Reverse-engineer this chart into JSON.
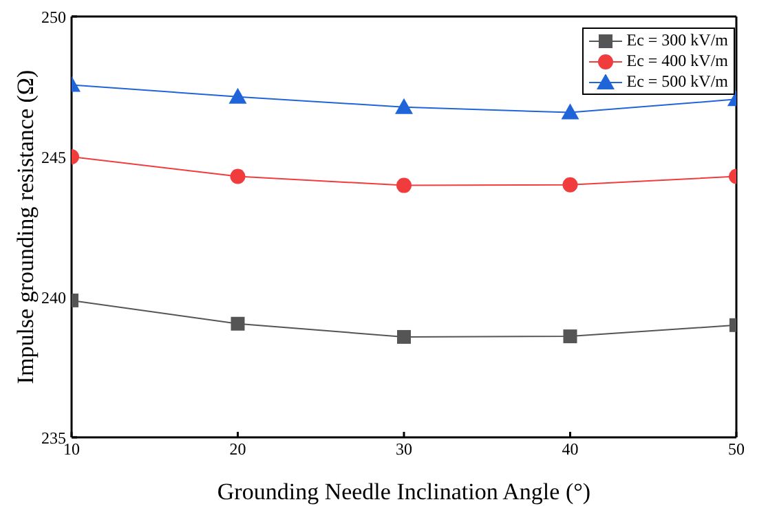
{
  "chart_data": {
    "type": "line",
    "xlabel": "Grounding Needle Inclination Angle (°)",
    "ylabel": "Impulse grounding resistance (Ω)",
    "x": [
      10,
      20,
      30,
      40,
      50
    ],
    "series": [
      {
        "name": "Ec = 300 kV/m",
        "color": "#555555",
        "marker": "square",
        "values": [
          239.88,
          239.05,
          238.58,
          238.6,
          239.0
        ]
      },
      {
        "name": "Ec = 400 kV/m",
        "color": "#f03c3c",
        "marker": "circle",
        "values": [
          245.0,
          244.3,
          243.98,
          244.0,
          244.3
        ]
      },
      {
        "name": "Ec = 500 kV/m",
        "color": "#1f64d8",
        "marker": "triangle",
        "values": [
          247.56,
          247.14,
          246.77,
          246.58,
          247.05
        ]
      }
    ],
    "xlim": [
      10,
      50
    ],
    "xticks": [
      10,
      20,
      30,
      40,
      50
    ],
    "ylim": [
      235,
      250
    ],
    "yticks": [
      235,
      240,
      245,
      250
    ],
    "grid": false,
    "legend": "top right"
  }
}
